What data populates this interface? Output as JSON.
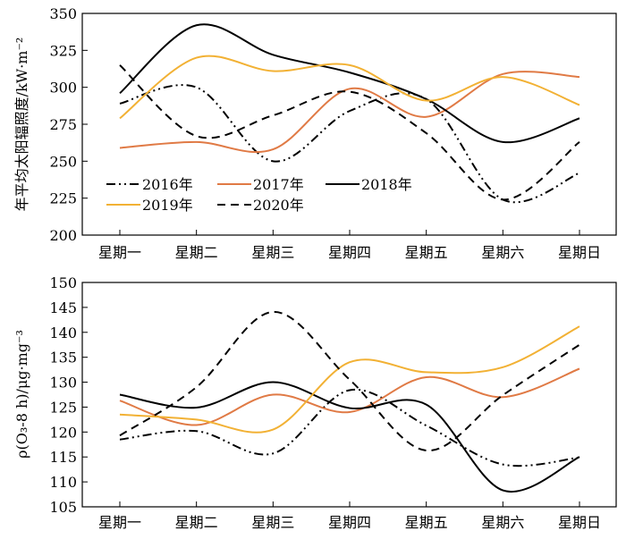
{
  "chart_data": [
    {
      "type": "line",
      "ylabel": "年平均太阳辐照度/kW·m⁻²",
      "xlabel": "",
      "categories": [
        "星期一",
        "星期二",
        "星期三",
        "星期四",
        "星期五",
        "星期六",
        "星期日"
      ],
      "ylim": [
        200,
        350
      ],
      "yticks": [
        200,
        225,
        250,
        275,
        300,
        325,
        350
      ],
      "legend_position": "lower-left",
      "series": [
        {
          "name": "2016年",
          "style": "dash-dot-dot",
          "color": "#000000",
          "values": [
            289,
            300,
            250,
            284,
            292,
            224,
            242
          ]
        },
        {
          "name": "2017年",
          "style": "solid",
          "color": "#e07a45",
          "values": [
            259,
            263,
            258,
            299,
            280,
            309,
            307
          ]
        },
        {
          "name": "2018年",
          "style": "solid",
          "color": "#000000",
          "values": [
            296,
            342,
            322,
            310,
            292,
            263,
            279
          ]
        },
        {
          "name": "2019年",
          "style": "solid",
          "color": "#f2b134",
          "values": [
            279,
            320,
            311,
            315,
            291,
            307,
            288
          ]
        },
        {
          "name": "2020年",
          "style": "dashed",
          "color": "#000000",
          "values": [
            315,
            267,
            281,
            297,
            269,
            224,
            263
          ]
        }
      ]
    },
    {
      "type": "line",
      "ylabel": "ρ(O₃-8 h)/μg·mg⁻³",
      "xlabel": "",
      "categories": [
        "星期一",
        "星期二",
        "星期三",
        "星期四",
        "星期五",
        "星期六",
        "星期日"
      ],
      "ylim": [
        105,
        150
      ],
      "yticks": [
        105,
        110,
        115,
        120,
        125,
        130,
        135,
        140,
        145,
        150
      ],
      "series": [
        {
          "name": "2016年",
          "style": "dash-dot-dot",
          "color": "#000000",
          "values": [
            118.5,
            120.2,
            115.7,
            128.4,
            121.3,
            113.5,
            114.9
          ]
        },
        {
          "name": "2017年",
          "style": "solid",
          "color": "#e07a45",
          "values": [
            126.3,
            121.4,
            127.5,
            124.0,
            131.0,
            127.0,
            132.7
          ]
        },
        {
          "name": "2018年",
          "style": "solid",
          "color": "#000000",
          "values": [
            127.5,
            124.9,
            130.0,
            124.8,
            125.5,
            108.3,
            115.0
          ]
        },
        {
          "name": "2019年",
          "style": "solid",
          "color": "#f2b134",
          "values": [
            123.5,
            122.5,
            120.5,
            134.0,
            132.0,
            133.0,
            141.2
          ]
        },
        {
          "name": "2020年",
          "style": "dashed",
          "color": "#000000",
          "values": [
            119.3,
            129.0,
            144.1,
            130.5,
            116.3,
            127.4,
            137.5
          ]
        }
      ]
    }
  ]
}
